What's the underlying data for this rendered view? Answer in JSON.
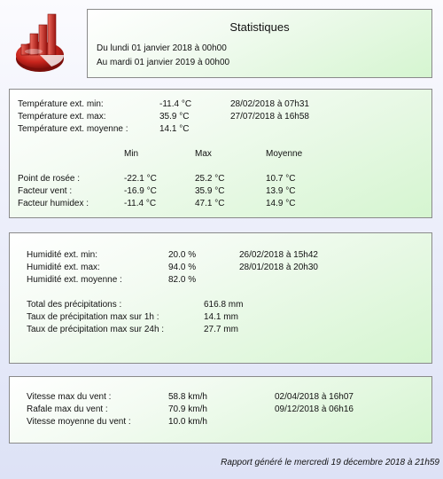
{
  "header": {
    "title": "Statistiques",
    "period_from": "Du lundi 01 janvier 2018 à 00h00",
    "period_to": "Au mardi 01 janvier 2019 à 00h00"
  },
  "temperature": {
    "min": {
      "label": "Température ext. min:",
      "value": "-11.4 °C",
      "date": "28/02/2018 à 07h31"
    },
    "max": {
      "label": "Température ext. max:",
      "value": "35.9 °C",
      "date": "27/07/2018 à 16h58"
    },
    "avg": {
      "label": "Température ext. moyenne :",
      "value": "14.1 °C"
    },
    "columns": {
      "min": "Min",
      "max": "Max",
      "avg": "Moyenne"
    },
    "rows": [
      {
        "label": "Point de rosée :",
        "min": "-22.1 °C",
        "max": "25.2 °C",
        "avg": "10.7 °C"
      },
      {
        "label": "Facteur vent :",
        "min": "-16.9 °C",
        "max": "35.9 °C",
        "avg": "13.9 °C"
      },
      {
        "label": "Facteur humidex :",
        "min": "-11.4 °C",
        "max": "47.1 °C",
        "avg": "14.9 °C"
      }
    ]
  },
  "humidity": {
    "min": {
      "label": "Humidité ext. min:",
      "value": "20.0 %",
      "date": "26/02/2018 à 15h42"
    },
    "max": {
      "label": "Humidité ext. max:",
      "value": "94.0 %",
      "date": "28/01/2018 à 20h30"
    },
    "avg": {
      "label": "Humidité ext. moyenne :",
      "value": "82.0 %"
    }
  },
  "precipitation": {
    "total": {
      "label": "Total des précipitations :",
      "value": "616.8 mm"
    },
    "rate_1h": {
      "label": "Taux de précipitation max sur 1h :",
      "value": "14.1 mm"
    },
    "rate_24h": {
      "label": "Taux de précipitation max sur 24h :",
      "value": "27.7 mm"
    }
  },
  "wind": {
    "max_speed": {
      "label": "Vitesse max du vent :",
      "value": "58.8 km/h",
      "date": "02/04/2018 à 16h07"
    },
    "max_gust": {
      "label": "Rafale max du vent :",
      "value": "70.9 km/h",
      "date": "09/12/2018 à 06h16"
    },
    "avg_speed": {
      "label": "Vitesse moyenne du vent :",
      "value": "10.0 km/h"
    }
  },
  "footer": {
    "generated": "Rapport généré le mercredi 19 décembre 2018 à 21h59"
  },
  "colors": {
    "accent_red": "#c8241c",
    "panel_green": "#d5f5d0",
    "background": "#dde2f6"
  },
  "icons": {
    "logo": "statistics-chart-icon"
  }
}
